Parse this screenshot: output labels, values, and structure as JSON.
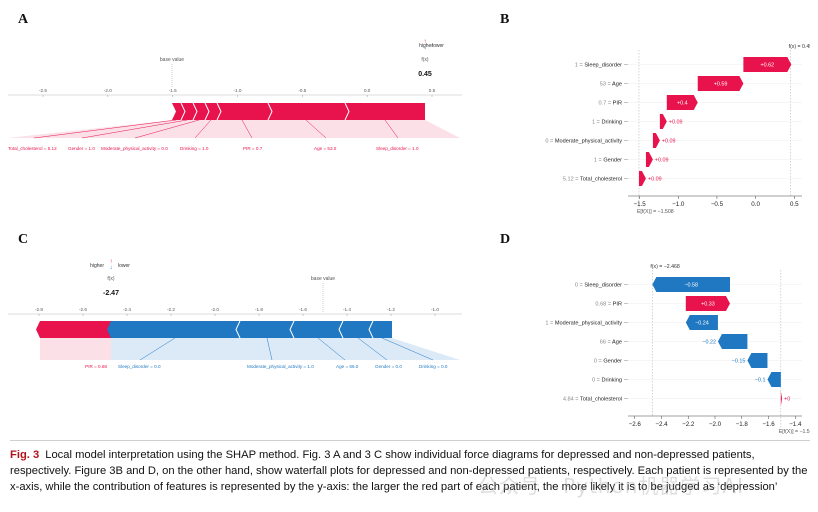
{
  "panels": {
    "A": {
      "label": "A",
      "base_value_label": "base value",
      "fx_label": "f(x)",
      "fx_value": "0.45",
      "legend_higher": "higher",
      "legend_lower": "lower",
      "ticks": [
        "-2.5",
        "-2.0",
        "-1.5",
        "-1.0",
        "-0.5",
        "0.0",
        "0.5"
      ],
      "features": [
        "Total_cholesterol = 5.12",
        "Gender = 1.0",
        "Moderate_physical_activity = 0.0",
        "Drinking = 1.0",
        "PIR = 0.7",
        "Age = 53.0",
        "Sleep_disorder = 1.0"
      ]
    },
    "B": {
      "label": "B",
      "fx_top": "f(x) = 0.453",
      "efx_bottom": "E[f(X)] = −1.508",
      "ticks": [
        "−1.5",
        "−1.0",
        "−0.5",
        "0.0",
        "0.5"
      ]
    },
    "C": {
      "label": "C",
      "base_value_label": "base value",
      "fx_label": "f(x)",
      "fx_value": "-2.47",
      "legend_higher": "higher",
      "legend_lower": "lower",
      "ticks": [
        "-2.8",
        "-2.6",
        "-2.4",
        "-2.2",
        "-2.0",
        "-1.8",
        "-1.6",
        "-1.4",
        "-1.2",
        "-1.0"
      ],
      "features_red": [
        "PIR = 0.68"
      ],
      "features_blue": [
        "Sleep_disorder = 0.0",
        "Moderate_physical_activity = 1.0",
        "Age = 66.0",
        "Gender = 0.0",
        "Drinking = 0.0"
      ]
    },
    "D": {
      "label": "D",
      "fx_top": "f(x) = −2.468",
      "efx_bottom": "E[f(X)] = −1.508",
      "ticks": [
        "−2.6",
        "−2.4",
        "−2.2",
        "−2.0",
        "−1.8",
        "−1.6",
        "−1.4"
      ]
    }
  },
  "chart_data": [
    {
      "type": "bar",
      "panel": "B",
      "categories": [
        "1 = Sleep_disorder",
        "53 = Age",
        "0.7 = PIR",
        "1 = Drinking",
        "0 = Moderate_physical_activity",
        "1 = Gender",
        "5.12 = Total_cholesterol"
      ],
      "values": [
        0.62,
        0.59,
        0.4,
        0.09,
        0.09,
        0.09,
        0.09
      ],
      "value_labels": [
        "+0.62",
        "+0.59",
        "+0.4",
        "+0.09",
        "+0.09",
        "+0.09",
        "+0.09"
      ],
      "base": -1.508,
      "final": 0.453,
      "xlim": [
        -1.65,
        0.6
      ]
    },
    {
      "type": "bar",
      "panel": "D",
      "categories": [
        "0 = Sleep_disorder",
        "0.68 = PIR",
        "1 = Moderate_physical_activity",
        "66 = Age",
        "0 = Gender",
        "0 = Drinking",
        "4.84 = Total_cholesterol"
      ],
      "values": [
        -0.58,
        0.33,
        -0.24,
        -0.22,
        -0.15,
        -0.1,
        0.0
      ],
      "value_labels": [
        "−0.58",
        "+0.33",
        "−0.24",
        "−0.22",
        "−0.15",
        "−0.1",
        "+0"
      ],
      "base": -1.508,
      "final": -2.468,
      "xlim": [
        -2.65,
        -1.35
      ]
    }
  ],
  "colors": {
    "red": "#e8134d",
    "blue": "#1f78c1",
    "red_light": "#f6a9bd",
    "blue_light": "#a7cdeb"
  },
  "caption": {
    "label": "Fig. 3",
    "text": "Local model interpretation using the SHAP method. Fig. 3 A and 3 C show individual force diagrams for depressed and non-depressed patients, respectively. Figure 3B and D, on the other hand, show waterfall plots for depressed and non-depressed patients, respectively. Each patient is represented by the x-axis, while the contribution of features is represented by the y-axis: the larger the red part of each patient, the more likely it is to be judged as ‘depression’"
  },
  "watermark": "公众号 · Python机器学习AI"
}
